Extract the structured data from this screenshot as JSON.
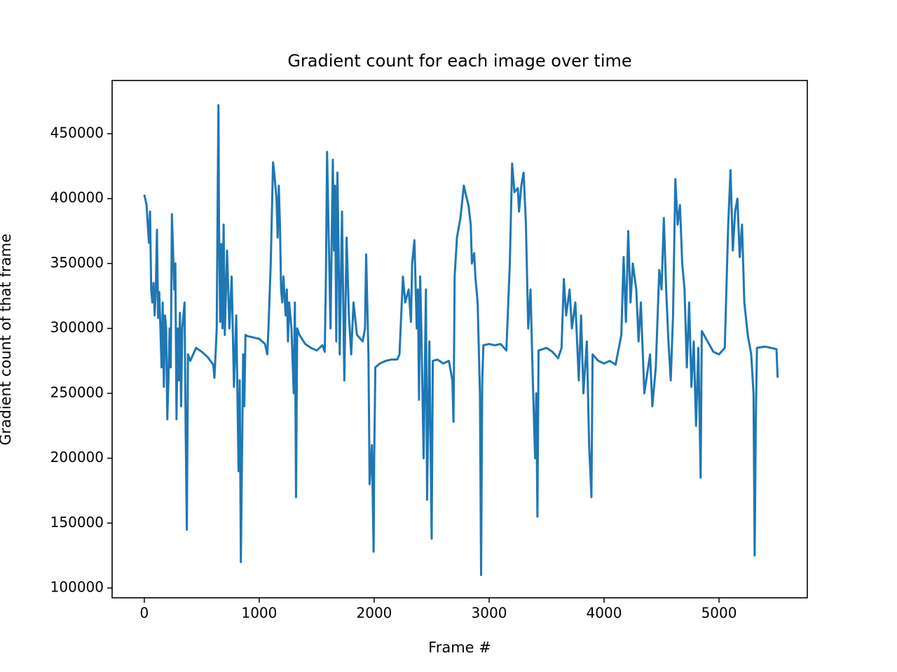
{
  "chart_data": {
    "type": "line",
    "title": "Gradient count for each image over time",
    "x_label": "Frame #",
    "y_label": "Gradient count of that frame",
    "xlim": [
      -280,
      5768
    ],
    "ylim": [
      92450,
      491000
    ],
    "xticks": [
      0,
      1000,
      2000,
      3000,
      4000,
      5000
    ],
    "yticks": [
      100000,
      150000,
      200000,
      250000,
      300000,
      350000,
      400000,
      450000
    ],
    "grid": false,
    "series": [
      {
        "color": "#1f77b4",
        "x": [
          0,
          20,
          30,
          40,
          50,
          60,
          70,
          80,
          90,
          100,
          110,
          120,
          130,
          140,
          150,
          160,
          170,
          180,
          190,
          200,
          210,
          220,
          230,
          240,
          250,
          260,
          270,
          280,
          290,
          300,
          310,
          320,
          330,
          350,
          360,
          370,
          380,
          400,
          450,
          500,
          550,
          600,
          610,
          620,
          630,
          640,
          645,
          650,
          660,
          670,
          680,
          690,
          700,
          720,
          740,
          760,
          780,
          800,
          820,
          830,
          840,
          850,
          860,
          870,
          880,
          900,
          1000,
          1050,
          1070,
          1080,
          1100,
          1120,
          1130,
          1150,
          1160,
          1170,
          1180,
          1190,
          1200,
          1210,
          1230,
          1240,
          1250,
          1260,
          1280,
          1300,
          1310,
          1320,
          1330,
          1350,
          1400,
          1450,
          1500,
          1550,
          1570,
          1580,
          1590,
          1600,
          1620,
          1640,
          1650,
          1660,
          1670,
          1680,
          1690,
          1700,
          1720,
          1740,
          1760,
          1780,
          1800,
          1820,
          1850,
          1900,
          1920,
          1930,
          1950,
          1960,
          1980,
          1995,
          2000,
          2010,
          2050,
          2100,
          2150,
          2200,
          2220,
          2250,
          2270,
          2300,
          2320,
          2330,
          2350,
          2370,
          2380,
          2390,
          2400,
          2410,
          2430,
          2450,
          2460,
          2480,
          2500,
          2510,
          2550,
          2600,
          2650,
          2680,
          2690,
          2700,
          2720,
          2750,
          2780,
          2800,
          2820,
          2840,
          2850,
          2870,
          2880,
          2900,
          2920,
          2930,
          2940,
          2950,
          3000,
          3050,
          3100,
          3150,
          3180,
          3200,
          3220,
          3250,
          3260,
          3280,
          3300,
          3320,
          3340,
          3360,
          3380,
          3400,
          3410,
          3420,
          3430,
          3500,
          3550,
          3600,
          3630,
          3650,
          3670,
          3700,
          3720,
          3750,
          3780,
          3800,
          3820,
          3850,
          3870,
          3890,
          3900,
          3950,
          4000,
          4050,
          4100,
          4150,
          4170,
          4190,
          4210,
          4230,
          4250,
          4280,
          4300,
          4320,
          4350,
          4400,
          4420,
          4450,
          4480,
          4500,
          4520,
          4540,
          4560,
          4580,
          4600,
          4620,
          4640,
          4660,
          4680,
          4700,
          4720,
          4740,
          4760,
          4780,
          4800,
          4820,
          4840,
          4850,
          4900,
          4950,
          5000,
          5050,
          5080,
          5100,
          5120,
          5140,
          5160,
          5180,
          5200,
          5220,
          5250,
          5280,
          5300,
          5310,
          5320,
          5330,
          5400,
          5500,
          5510
        ],
        "values": [
          403000,
          395000,
          380000,
          366000,
          390000,
          330000,
          320000,
          335000,
          310000,
          330000,
          376000,
          308000,
          328000,
          300000,
          270000,
          320000,
          255000,
          310000,
          300000,
          230000,
          260000,
          300000,
          270000,
          388000,
          360000,
          330000,
          350000,
          230000,
          300000,
          260000,
          312000,
          240000,
          300000,
          320000,
          220000,
          145000,
          280000,
          275000,
          285000,
          282000,
          278000,
          272000,
          262000,
          280000,
          300000,
          420000,
          472000,
          380000,
          305000,
          365000,
          300000,
          380000,
          295000,
          360000,
          300000,
          340000,
          255000,
          310000,
          190000,
          260000,
          120000,
          200000,
          280000,
          240000,
          295000,
          294000,
          292000,
          288000,
          280000,
          300000,
          350000,
          428000,
          420000,
          400000,
          370000,
          410000,
          380000,
          330000,
          320000,
          340000,
          310000,
          330000,
          290000,
          320000,
          300000,
          250000,
          320000,
          170000,
          300000,
          295000,
          288000,
          285000,
          283000,
          287000,
          282000,
          340000,
          436000,
          390000,
          300000,
          430000,
          360000,
          410000,
          290000,
          420000,
          360000,
          280000,
          390000,
          260000,
          370000,
          310000,
          280000,
          320000,
          295000,
          290000,
          300000,
          357000,
          280000,
          180000,
          210000,
          128000,
          200000,
          270000,
          273000,
          275000,
          276000,
          276000,
          280000,
          340000,
          320000,
          330000,
          305000,
          350000,
          368000,
          300000,
          330000,
          245000,
          340000,
          300000,
          200000,
          330000,
          168000,
          290000,
          138000,
          275000,
          276000,
          273000,
          275000,
          260000,
          228000,
          340000,
          370000,
          385000,
          410000,
          402000,
          395000,
          380000,
          350000,
          358000,
          340000,
          320000,
          250000,
          110000,
          260000,
          287000,
          288000,
          287000,
          288000,
          283000,
          350000,
          427000,
          405000,
          408000,
          390000,
          410000,
          420000,
          380000,
          300000,
          330000,
          260000,
          200000,
          250000,
          155000,
          283000,
          285000,
          282000,
          277000,
          285000,
          338000,
          310000,
          330000,
          300000,
          320000,
          260000,
          310000,
          250000,
          290000,
          210000,
          170000,
          280000,
          275000,
          273000,
          275000,
          272000,
          295000,
          355000,
          305000,
          375000,
          320000,
          350000,
          330000,
          290000,
          320000,
          250000,
          280000,
          240000,
          270000,
          345000,
          330000,
          385000,
          330000,
          290000,
          260000,
          310000,
          415000,
          380000,
          395000,
          350000,
          330000,
          270000,
          320000,
          255000,
          290000,
          225000,
          285000,
          185000,
          298000,
          290000,
          282000,
          280000,
          285000,
          380000,
          422000,
          360000,
          390000,
          400000,
          355000,
          380000,
          320000,
          295000,
          280000,
          250000,
          125000,
          230000,
          285000,
          286000,
          284000,
          262000
        ]
      }
    ]
  }
}
